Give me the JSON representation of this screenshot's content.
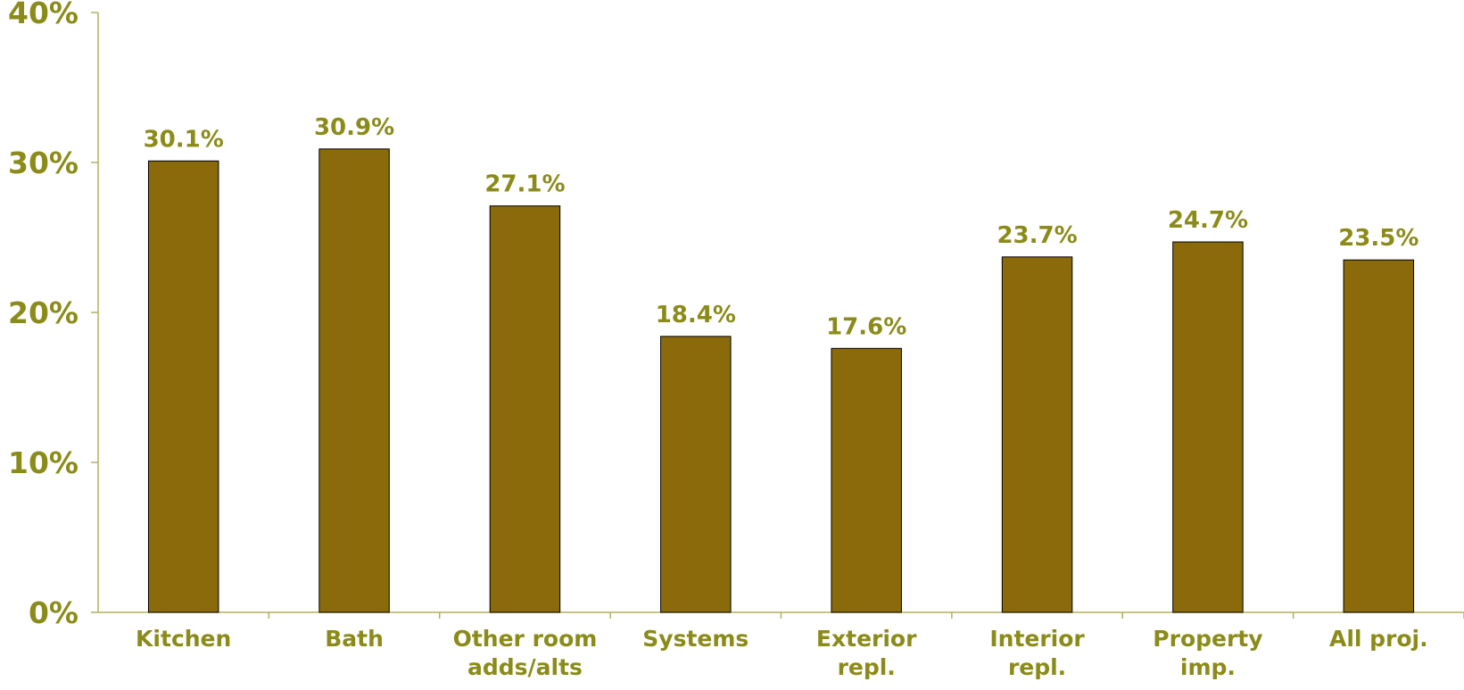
{
  "chart_data": {
    "type": "bar",
    "title": "",
    "xlabel": "",
    "ylabel": "",
    "categories": [
      [
        "Kitchen"
      ],
      [
        "Bath"
      ],
      [
        "Other room",
        "adds/alts"
      ],
      [
        "Systems"
      ],
      [
        "Exterior",
        "repl."
      ],
      [
        "Interior",
        "repl."
      ],
      [
        "Property",
        "imp."
      ],
      [
        "All proj."
      ]
    ],
    "values": [
      30.1,
      30.9,
      27.1,
      18.4,
      17.6,
      23.7,
      24.7,
      23.5
    ],
    "value_labels": [
      "30.1%",
      "30.9%",
      "27.1%",
      "18.4%",
      "17.6%",
      "23.7%",
      "24.7%",
      "23.5%"
    ],
    "ylim": [
      0,
      40
    ],
    "yticks": [
      0,
      10,
      20,
      30,
      40
    ],
    "ytick_labels": [
      "0%",
      "10%",
      "20%",
      "30%",
      "40%"
    ],
    "grid": false,
    "legend": "none",
    "colors": {
      "bar_fill": "#8B6A0B",
      "bar_stroke": "#000000",
      "text": "#8B8B1A",
      "axis": "#B5B05A"
    }
  }
}
